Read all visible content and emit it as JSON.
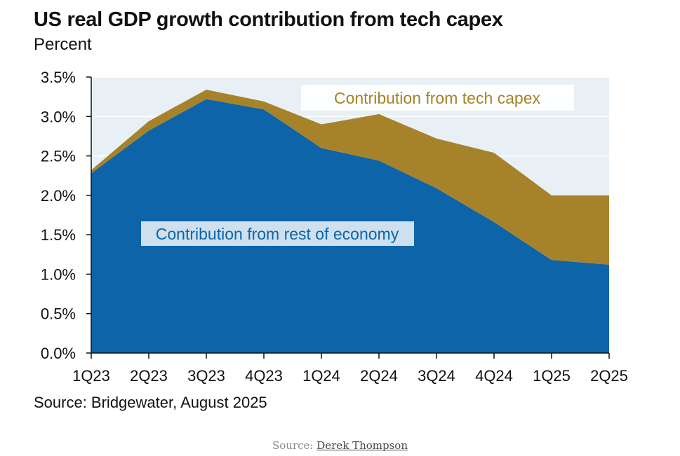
{
  "title": "US real GDP growth contribution from tech capex",
  "subtitle": "Percent",
  "source_note": "Source: Bridgewater, August 2025",
  "caption": {
    "prefix": "Source:",
    "link_text": "Derek Thompson"
  },
  "colors": {
    "rest_of_economy": "#0d64a8",
    "tech_capex": "#a6832a",
    "plot_background": "#e8f0f6",
    "gridline": "#ffffff"
  },
  "chart_data": {
    "type": "area",
    "stacked": true,
    "categories": [
      "1Q23",
      "2Q23",
      "3Q23",
      "4Q23",
      "1Q24",
      "2Q24",
      "3Q24",
      "4Q24",
      "1Q25",
      "2Q25"
    ],
    "series": [
      {
        "name": "Contribution from rest of economy",
        "values": [
          2.28,
          2.82,
          3.22,
          3.09,
          2.6,
          2.44,
          2.09,
          1.66,
          1.18,
          1.12
        ]
      },
      {
        "name": "Contribution from tech capex",
        "values": [
          0.04,
          0.12,
          0.12,
          0.1,
          0.3,
          0.59,
          0.63,
          0.88,
          0.82,
          0.88
        ]
      }
    ],
    "y_ticks": [
      "0.0%",
      "0.5%",
      "1.0%",
      "1.5%",
      "2.0%",
      "2.5%",
      "3.0%",
      "3.5%"
    ],
    "ylim": [
      0,
      3.5
    ],
    "grid": true
  }
}
